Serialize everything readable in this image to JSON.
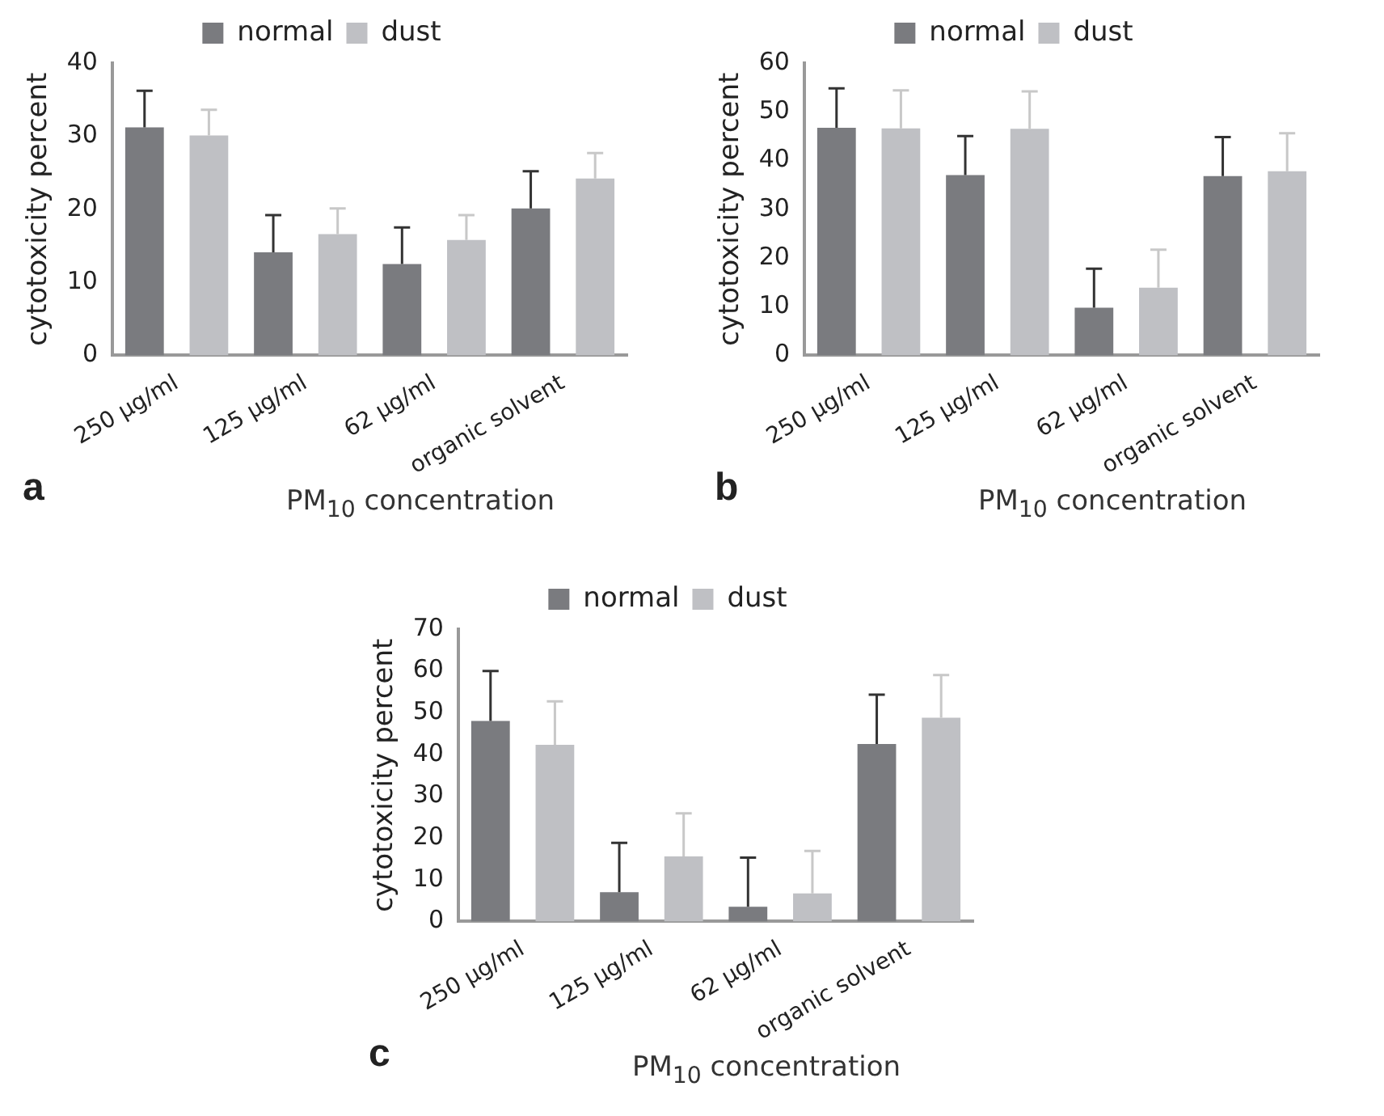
{
  "chart_data": [
    {
      "type": "bar",
      "xlabel": "PM$_{10}$ concentration",
      "ylabel": "cytotoxicity percent",
      "annotations": [
        "a"
      ],
      "categories": [
        "250 µg/ml",
        "125 µg/ml",
        "62 µg/ml",
        "organic solvent"
      ],
      "series": [
        {
          "name": "normal",
          "color": "#7a7b7f",
          "values": [
            31.2,
            14.1,
            12.5,
            20.1
          ],
          "errors": [
            [
              31.2,
              36.2
            ],
            [
              14.1,
              19.2
            ],
            [
              12.5,
              17.5
            ],
            [
              20.1,
              25.2
            ]
          ]
        },
        {
          "name": "dust",
          "color": "#bfc0c4",
          "values": [
            30.1,
            16.6,
            15.8,
            24.2
          ],
          "errors": [
            [
              30.1,
              33.6
            ],
            [
              16.6,
              20.1
            ],
            [
              15.8,
              19.2
            ],
            [
              24.2,
              27.7
            ]
          ]
        }
      ],
      "ylim": [
        0,
        40
      ],
      "yticks": [
        0,
        10,
        20,
        30,
        40
      ],
      "grid": false,
      "legend": "top"
    },
    {
      "type": "bar",
      "xlabel": "PM$_{10}$ concentration",
      "ylabel": "cytotoxicity percent",
      "annotations": [
        "b"
      ],
      "categories": [
        "250 µg/ml",
        "125 µg/ml",
        "62 µg/ml",
        "organic solvent"
      ],
      "series": [
        {
          "name": "normal",
          "color": "#7a7b7f",
          "values": [
            46.7,
            37,
            9.8,
            36.8
          ],
          "errors": [
            [
              46.7,
              54.8
            ],
            [
              37,
              45
            ],
            [
              9.8,
              17.8
            ],
            [
              36.8,
              44.8
            ]
          ]
        },
        {
          "name": "dust",
          "color": "#bfc0c4",
          "values": [
            46.6,
            46.5,
            13.9,
            37.8
          ],
          "errors": [
            [
              46.6,
              54.4
            ],
            [
              46.5,
              54.2
            ],
            [
              13.9,
              21.7
            ],
            [
              37.8,
              45.6
            ]
          ]
        }
      ],
      "ylim": [
        0,
        60
      ],
      "yticks": [
        0,
        10,
        20,
        30,
        40,
        50,
        60
      ],
      "grid": false,
      "legend": "top"
    },
    {
      "type": "bar",
      "xlabel": "PM$_{10}$ concentration",
      "ylabel": "cytotoxicity percent",
      "annotations": [
        "c"
      ],
      "categories": [
        "250 µg/ml",
        "125 µg/ml",
        "62 µg/ml",
        "organic solvent"
      ],
      "series": [
        {
          "name": "normal",
          "color": "#7a7b7f",
          "values": [
            48,
            7,
            3.5,
            42.5
          ],
          "errors": [
            [
              48,
              60
            ],
            [
              7,
              18.8
            ],
            [
              3.5,
              15.3
            ],
            [
              42.5,
              54.3
            ]
          ]
        },
        {
          "name": "dust",
          "color": "#bfc0c4",
          "values": [
            42.3,
            15.6,
            6.7,
            48.8
          ],
          "errors": [
            [
              42.3,
              52.7
            ],
            [
              15.6,
              25.9
            ],
            [
              6.7,
              16.9
            ],
            [
              48.8,
              59
            ]
          ]
        }
      ],
      "ylim": [
        0,
        70
      ],
      "yticks": [
        0,
        10,
        20,
        30,
        40,
        50,
        60,
        70
      ],
      "grid": false,
      "legend": "top"
    }
  ]
}
